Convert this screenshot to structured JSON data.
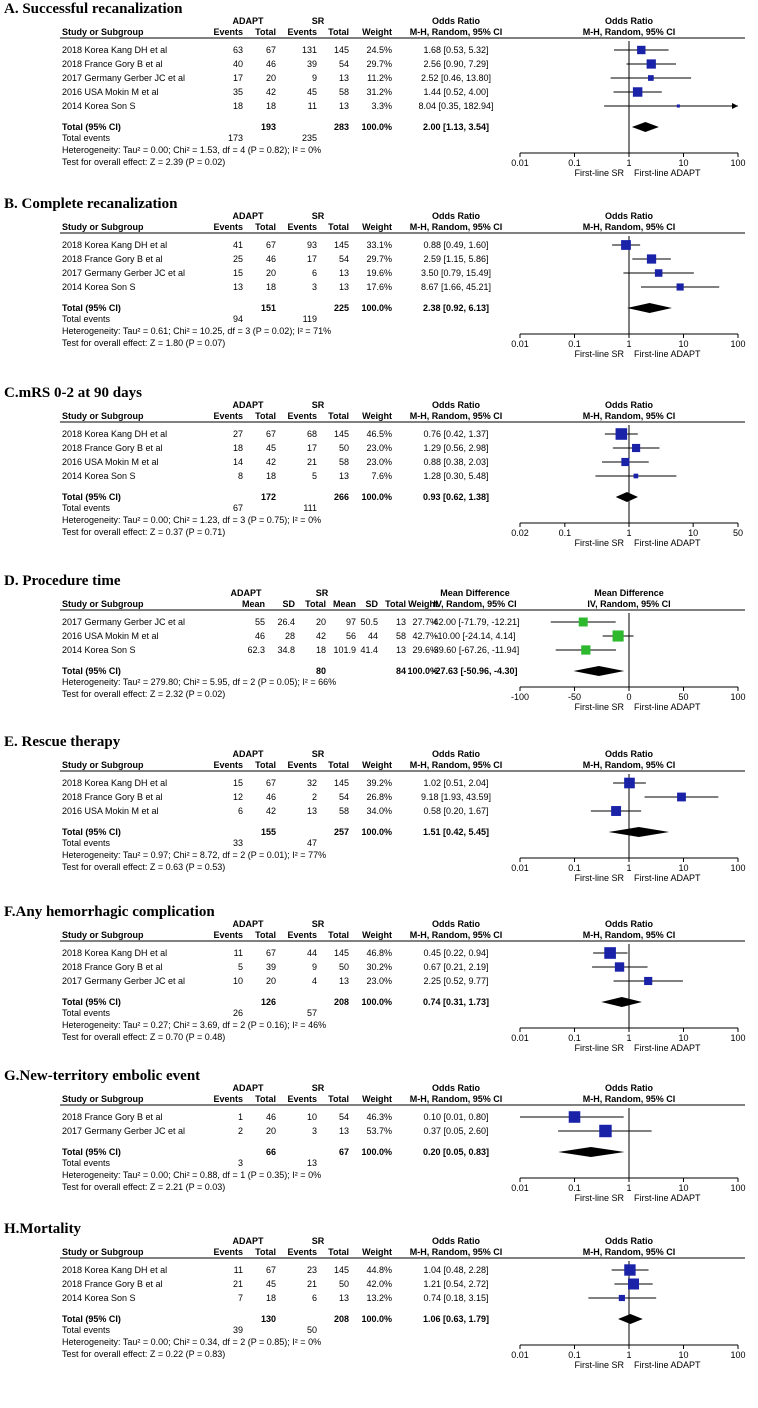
{
  "figure": "forest-plots",
  "header_labels": {
    "study": "Study or Subgroup",
    "events": "Events",
    "total": "Total",
    "mean": "Mean",
    "sd": "SD",
    "weight": "Weight",
    "ci": "95% CI"
  },
  "chart_data": [
    {
      "type": "forest",
      "title": "A. Successful recanalization",
      "group1": "ADAPT",
      "group2": "SR",
      "measure_col": "Odds Ratio",
      "method_col": "M-H, Random, 95% CI",
      "plot_title": "Odds Ratio",
      "plot_method": "M-H, Random, 95% CI",
      "scale": "log",
      "ticks": [
        0.01,
        0.1,
        1,
        10,
        100
      ],
      "tick_labels": [
        "0.01",
        "0.1",
        "1",
        "10",
        "100"
      ],
      "favours_left": "First-line SR",
      "favours_right": "First-line ADAPT",
      "studies": [
        {
          "name": "2018 Korea Kang DH et al",
          "g1": [
            "63",
            "67"
          ],
          "g2": [
            "131",
            "145"
          ],
          "weight": "24.5%",
          "ci_text": "1.68 [0.53, 5.32]",
          "est": 1.68,
          "lo": 0.53,
          "hi": 5.32
        },
        {
          "name": "2018 France Gory B et al",
          "g1": [
            "40",
            "46"
          ],
          "g2": [
            "39",
            "54"
          ],
          "weight": "29.7%",
          "ci_text": "2.56 [0.90, 7.29]",
          "est": 2.56,
          "lo": 0.9,
          "hi": 7.29
        },
        {
          "name": "2017 Germany Gerber JC et al",
          "g1": [
            "17",
            "20"
          ],
          "g2": [
            "9",
            "13"
          ],
          "weight": "11.2%",
          "ci_text": "2.52 [0.46, 13.80]",
          "est": 2.52,
          "lo": 0.46,
          "hi": 13.8
        },
        {
          "name": "2016 USA Mokin M et al",
          "g1": [
            "35",
            "42"
          ],
          "g2": [
            "45",
            "58"
          ],
          "weight": "31.2%",
          "ci_text": "1.44 [0.52, 4.00]",
          "est": 1.44,
          "lo": 0.52,
          "hi": 4.0
        },
        {
          "name": "2014 Korea Son S",
          "g1": [
            "18",
            "18"
          ],
          "g2": [
            "11",
            "13"
          ],
          "weight": "3.3%",
          "ci_text": "8.04 [0.35, 182.94]",
          "est": 8.04,
          "lo": 0.35,
          "hi": 182.94
        }
      ],
      "total": {
        "label": "Total (95% CI)",
        "g1_total": "193",
        "g2_total": "283",
        "weight": "100.0%",
        "ci_text": "2.00 [1.13, 3.54]",
        "est": 2.0,
        "lo": 1.13,
        "hi": 3.54
      },
      "total_events": {
        "label": "Total events",
        "g1": "173",
        "g2": "235"
      },
      "heterogeneity": "Heterogeneity: Tau² = 0.00; Chi² = 1.53, df = 4 (P = 0.82); I² = 0%",
      "overall": "Test for overall effect: Z = 2.39 (P = 0.02)"
    },
    {
      "type": "forest",
      "title": "B. Complete recanalization",
      "group1": "ADAPT",
      "group2": "SR",
      "measure_col": "Odds Ratio",
      "method_col": "M-H, Random, 95% CI",
      "plot_title": "Odds Ratio",
      "plot_method": "M-H, Random, 95% CI",
      "scale": "log",
      "ticks": [
        0.01,
        0.1,
        1,
        10,
        100
      ],
      "tick_labels": [
        "0.01",
        "0.1",
        "1",
        "10",
        "100"
      ],
      "favours_left": "First-line SR",
      "favours_right": "First-line ADAPT",
      "studies": [
        {
          "name": "2018 Korea Kang DH et al",
          "g1": [
            "41",
            "67"
          ],
          "g2": [
            "93",
            "145"
          ],
          "weight": "33.1%",
          "ci_text": "0.88 [0.49, 1.60]",
          "est": 0.88,
          "lo": 0.49,
          "hi": 1.6
        },
        {
          "name": "2018 France Gory B et al",
          "g1": [
            "25",
            "46"
          ],
          "g2": [
            "17",
            "54"
          ],
          "weight": "29.7%",
          "ci_text": "2.59 [1.15, 5.86]",
          "est": 2.59,
          "lo": 1.15,
          "hi": 5.86
        },
        {
          "name": "2017 Germany Gerber JC et al",
          "g1": [
            "15",
            "20"
          ],
          "g2": [
            "6",
            "13"
          ],
          "weight": "19.6%",
          "ci_text": "3.50 [0.79, 15.49]",
          "est": 3.5,
          "lo": 0.79,
          "hi": 15.49
        },
        {
          "name": "2014 Korea Son S",
          "g1": [
            "13",
            "18"
          ],
          "g2": [
            "3",
            "13"
          ],
          "weight": "17.6%",
          "ci_text": "8.67 [1.66, 45.21]",
          "est": 8.67,
          "lo": 1.66,
          "hi": 45.21
        }
      ],
      "total": {
        "label": "Total (95% CI)",
        "g1_total": "151",
        "g2_total": "225",
        "weight": "100.0%",
        "ci_text": "2.38 [0.92, 6.13]",
        "est": 2.38,
        "lo": 0.92,
        "hi": 6.13
      },
      "total_events": {
        "label": "Total events",
        "g1": "94",
        "g2": "119"
      },
      "heterogeneity": "Heterogeneity: Tau² = 0.61; Chi² = 10.25, df = 3 (P = 0.02); I² = 71%",
      "overall": "Test for overall effect: Z = 1.80 (P = 0.07)"
    },
    {
      "type": "forest",
      "title": "C.mRS 0-2 at 90 days",
      "group1": "ADAPT",
      "group2": "SR",
      "measure_col": "Odds Ratio",
      "method_col": "M-H, Random, 95% CI",
      "plot_title": "Odds Ratio",
      "plot_method": "M-H, Random, 95% CI",
      "scale": "log",
      "ticks": [
        0.02,
        0.1,
        1,
        10,
        50
      ],
      "tick_labels": [
        "0.02",
        "0.1",
        "1",
        "10",
        "50"
      ],
      "favours_left": "First-line SR",
      "favours_right": "First-line ADAPT",
      "studies": [
        {
          "name": "2018 Korea Kang DH et al",
          "g1": [
            "27",
            "67"
          ],
          "g2": [
            "68",
            "145"
          ],
          "weight": "46.5%",
          "ci_text": "0.76 [0.42, 1.37]",
          "est": 0.76,
          "lo": 0.42,
          "hi": 1.37
        },
        {
          "name": "2018 France Gory B et al",
          "g1": [
            "18",
            "45"
          ],
          "g2": [
            "17",
            "50"
          ],
          "weight": "23.0%",
          "ci_text": "1.29 [0.56, 2.98]",
          "est": 1.29,
          "lo": 0.56,
          "hi": 2.98
        },
        {
          "name": "2016 USA Mokin M et al",
          "g1": [
            "14",
            "42"
          ],
          "g2": [
            "21",
            "58"
          ],
          "weight": "23.0%",
          "ci_text": "0.88 [0.38, 2.03]",
          "est": 0.88,
          "lo": 0.38,
          "hi": 2.03
        },
        {
          "name": "2014 Korea Son S",
          "g1": [
            "8",
            "18"
          ],
          "g2": [
            "5",
            "13"
          ],
          "weight": "7.6%",
          "ci_text": "1.28 [0.30, 5.48]",
          "est": 1.28,
          "lo": 0.3,
          "hi": 5.48
        }
      ],
      "total": {
        "label": "Total (95% CI)",
        "g1_total": "172",
        "g2_total": "266",
        "weight": "100.0%",
        "ci_text": "0.93 [0.62, 1.38]",
        "est": 0.93,
        "lo": 0.62,
        "hi": 1.38
      },
      "total_events": {
        "label": "Total events",
        "g1": "67",
        "g2": "111"
      },
      "heterogeneity": "Heterogeneity: Tau² = 0.00; Chi² = 1.23, df = 3 (P = 0.75); I² = 0%",
      "overall": "Test for overall effect: Z = 0.37 (P = 0.71)"
    },
    {
      "type": "forest",
      "title": "D. Procedure time",
      "group1": "ADAPT",
      "group2": "SR",
      "measure_col": "Mean Difference",
      "method_col": "IV, Random, 95% CI",
      "plot_title": "Mean Difference",
      "plot_method": "IV, Random, 95% CI",
      "scale": "linear",
      "continuous": true,
      "marker_color": "#2db82d",
      "ticks": [
        -100,
        -50,
        0,
        50,
        100
      ],
      "tick_labels": [
        "-100",
        "-50",
        "0",
        "50",
        "100"
      ],
      "favours_left": "First-line SR",
      "favours_right": "First-line ADAPT",
      "studies": [
        {
          "name": "2017 Germany Gerber JC et al",
          "g1": [
            "55",
            "26.4",
            "20"
          ],
          "g2": [
            "97",
            "50.5",
            "13"
          ],
          "weight": "27.7%",
          "ci_text": "-42.00 [-71.79, -12.21]",
          "est": -42.0,
          "lo": -71.79,
          "hi": -12.21
        },
        {
          "name": "2016 USA Mokin M et al",
          "g1": [
            "46",
            "28",
            "42"
          ],
          "g2": [
            "56",
            "44",
            "58"
          ],
          "weight": "42.7%",
          "ci_text": "-10.00 [-24.14, 4.14]",
          "est": -10.0,
          "lo": -24.14,
          "hi": 4.14
        },
        {
          "name": "2014 Korea Son S",
          "g1": [
            "62.3",
            "34.8",
            "18"
          ],
          "g2": [
            "101.9",
            "41.4",
            "13"
          ],
          "weight": "29.6%",
          "ci_text": "-39.60 [-67.26, -11.94]",
          "est": -39.6,
          "lo": -67.26,
          "hi": -11.94
        }
      ],
      "total": {
        "label": "Total (95% CI)",
        "g1_total": "80",
        "g2_total": "84",
        "weight": "100.0%",
        "ci_text": "-27.63 [-50.96, -4.30]",
        "est": -27.63,
        "lo": -50.96,
        "hi": -4.3
      },
      "heterogeneity": "Heterogeneity: Tau² = 279.80; Chi² = 5.95, df = 2 (P = 0.05); I² = 66%",
      "overall": "Test for overall effect: Z = 2.32 (P = 0.02)"
    },
    {
      "type": "forest",
      "title": "E. Rescue therapy",
      "group1": "ADAPT",
      "group2": "SR",
      "measure_col": "Odds Ratio",
      "method_col": "M-H, Random, 95% CI",
      "plot_title": "Odds Ratio",
      "plot_method": "M-H, Random, 95% CI",
      "scale": "log",
      "ticks": [
        0.01,
        0.1,
        1,
        10,
        100
      ],
      "tick_labels": [
        "0.01",
        "0.1",
        "1",
        "10",
        "100"
      ],
      "favours_left": "First-line SR",
      "favours_right": "First-line ADAPT",
      "studies": [
        {
          "name": "2018 Korea Kang DH et al",
          "g1": [
            "15",
            "67"
          ],
          "g2": [
            "32",
            "145"
          ],
          "weight": "39.2%",
          "ci_text": "1.02 [0.51, 2.04]",
          "est": 1.02,
          "lo": 0.51,
          "hi": 2.04
        },
        {
          "name": "2018 France Gory B et al",
          "g1": [
            "12",
            "46"
          ],
          "g2": [
            "2",
            "54"
          ],
          "weight": "26.8%",
          "ci_text": "9.18 [1.93, 43.59]",
          "est": 9.18,
          "lo": 1.93,
          "hi": 43.59
        },
        {
          "name": "2016 USA Mokin M et al",
          "g1": [
            "6",
            "42"
          ],
          "g2": [
            "13",
            "58"
          ],
          "weight": "34.0%",
          "ci_text": "0.58 [0.20, 1.67]",
          "est": 0.58,
          "lo": 0.2,
          "hi": 1.67
        }
      ],
      "total": {
        "label": "Total (95% CI)",
        "g1_total": "155",
        "g2_total": "257",
        "weight": "100.0%",
        "ci_text": "1.51 [0.42, 5.45]",
        "est": 1.51,
        "lo": 0.42,
        "hi": 5.45
      },
      "total_events": {
        "label": "Total events",
        "g1": "33",
        "g2": "47"
      },
      "heterogeneity": "Heterogeneity: Tau² = 0.97; Chi² = 8.72, df = 2 (P = 0.01); I² = 77%",
      "overall": "Test for overall effect: Z = 0.63 (P = 0.53)"
    },
    {
      "type": "forest",
      "title": "F.Any hemorrhagic complication",
      "group1": "ADAPT",
      "group2": "SR",
      "measure_col": "Odds Ratio",
      "method_col": "M-H, Random, 95% CI",
      "plot_title": "Odds Ratio",
      "plot_method": "M-H, Random, 95% CI",
      "scale": "log",
      "ticks": [
        0.01,
        0.1,
        1,
        10,
        100
      ],
      "tick_labels": [
        "0.01",
        "0.1",
        "1",
        "10",
        "100"
      ],
      "favours_left": "First-line SR",
      "favours_right": "First-line ADAPT",
      "studies": [
        {
          "name": "2018 Korea Kang DH et al",
          "g1": [
            "11",
            "67"
          ],
          "g2": [
            "44",
            "145"
          ],
          "weight": "46.8%",
          "ci_text": "0.45 [0.22, 0.94]",
          "est": 0.45,
          "lo": 0.22,
          "hi": 0.94
        },
        {
          "name": "2018 France Gory B et al",
          "g1": [
            "5",
            "39"
          ],
          "g2": [
            "9",
            "50"
          ],
          "weight": "30.2%",
          "ci_text": "0.67 [0.21, 2.19]",
          "est": 0.67,
          "lo": 0.21,
          "hi": 2.19
        },
        {
          "name": "2017 Germany Gerber JC et al",
          "g1": [
            "10",
            "20"
          ],
          "g2": [
            "4",
            "13"
          ],
          "weight": "23.0%",
          "ci_text": "2.25 [0.52, 9.77]",
          "est": 2.25,
          "lo": 0.52,
          "hi": 9.77
        }
      ],
      "total": {
        "label": "Total (95% CI)",
        "g1_total": "126",
        "g2_total": "208",
        "weight": "100.0%",
        "ci_text": "0.74 [0.31, 1.73]",
        "est": 0.74,
        "lo": 0.31,
        "hi": 1.73
      },
      "total_events": {
        "label": "Total events",
        "g1": "26",
        "g2": "57"
      },
      "heterogeneity": "Heterogeneity: Tau² = 0.27; Chi² = 3.69, df = 2 (P = 0.16); I² = 46%",
      "overall": "Test for overall effect: Z = 0.70 (P = 0.48)"
    },
    {
      "type": "forest",
      "title": "G.New-territory embolic event",
      "group1": "ADAPT",
      "group2": "SR",
      "measure_col": "Odds Ratio",
      "method_col": "M-H, Random, 95% CI",
      "plot_title": "Odds Ratio",
      "plot_method": "M-H, Random, 95% CI",
      "scale": "log",
      "ticks": [
        0.01,
        0.1,
        1,
        10,
        100
      ],
      "tick_labels": [
        "0.01",
        "0.1",
        "1",
        "10",
        "100"
      ],
      "favours_left": "First-line SR",
      "favours_right": "First-line ADAPT",
      "studies": [
        {
          "name": "2018 France Gory B et al",
          "g1": [
            "1",
            "46"
          ],
          "g2": [
            "10",
            "54"
          ],
          "weight": "46.3%",
          "ci_text": "0.10 [0.01, 0.80]",
          "est": 0.1,
          "lo": 0.01,
          "hi": 0.8
        },
        {
          "name": "2017 Germany Gerber JC et al",
          "g1": [
            "2",
            "20"
          ],
          "g2": [
            "3",
            "13"
          ],
          "weight": "53.7%",
          "ci_text": "0.37 [0.05, 2.60]",
          "est": 0.37,
          "lo": 0.05,
          "hi": 2.6
        }
      ],
      "total": {
        "label": "Total (95% CI)",
        "g1_total": "66",
        "g2_total": "67",
        "weight": "100.0%",
        "ci_text": "0.20 [0.05, 0.83]",
        "est": 0.2,
        "lo": 0.05,
        "hi": 0.83
      },
      "total_events": {
        "label": "Total events",
        "g1": "3",
        "g2": "13"
      },
      "heterogeneity": "Heterogeneity: Tau² = 0.00; Chi² = 0.88, df = 1 (P = 0.35); I² = 0%",
      "overall": "Test for overall effect: Z = 2.21 (P = 0.03)"
    },
    {
      "type": "forest",
      "title": "H.Mortality",
      "group1": "ADAPT",
      "group2": "SR",
      "measure_col": "Odds Ratio",
      "method_col": "M-H, Random, 95% CI",
      "plot_title": "Odds Ratio",
      "plot_method": "M-H, Random, 95% CI",
      "scale": "log",
      "ticks": [
        0.01,
        0.1,
        1,
        10,
        100
      ],
      "tick_labels": [
        "0.01",
        "0.1",
        "1",
        "10",
        "100"
      ],
      "favours_left": "First-line SR",
      "favours_right": "First-line ADAPT",
      "studies": [
        {
          "name": "2018 Korea Kang DH et al",
          "g1": [
            "11",
            "67"
          ],
          "g2": [
            "23",
            "145"
          ],
          "weight": "44.8%",
          "ci_text": "1.04 [0.48, 2.28]",
          "est": 1.04,
          "lo": 0.48,
          "hi": 2.28
        },
        {
          "name": "2018 France Gory B et al",
          "g1": [
            "21",
            "45"
          ],
          "g2": [
            "21",
            "50"
          ],
          "weight": "42.0%",
          "ci_text": "1.21 [0.54, 2.72]",
          "est": 1.21,
          "lo": 0.54,
          "hi": 2.72
        },
        {
          "name": "2014 Korea Son S",
          "g1": [
            "7",
            "18"
          ],
          "g2": [
            "6",
            "13"
          ],
          "weight": "13.2%",
          "ci_text": "0.74 [0.18, 3.15]",
          "est": 0.74,
          "lo": 0.18,
          "hi": 3.15
        }
      ],
      "total": {
        "label": "Total (95% CI)",
        "g1_total": "130",
        "g2_total": "208",
        "weight": "100.0%",
        "ci_text": "1.06 [0.63, 1.79]",
        "est": 1.06,
        "lo": 0.63,
        "hi": 1.79
      },
      "total_events": {
        "label": "Total events",
        "g1": "39",
        "g2": "50"
      },
      "heterogeneity": "Heterogeneity: Tau² = 0.00; Chi² = 0.34, df = 2 (P = 0.85); I² = 0%",
      "overall": "Test for overall effect: Z = 0.22 (P = 0.83)"
    }
  ]
}
